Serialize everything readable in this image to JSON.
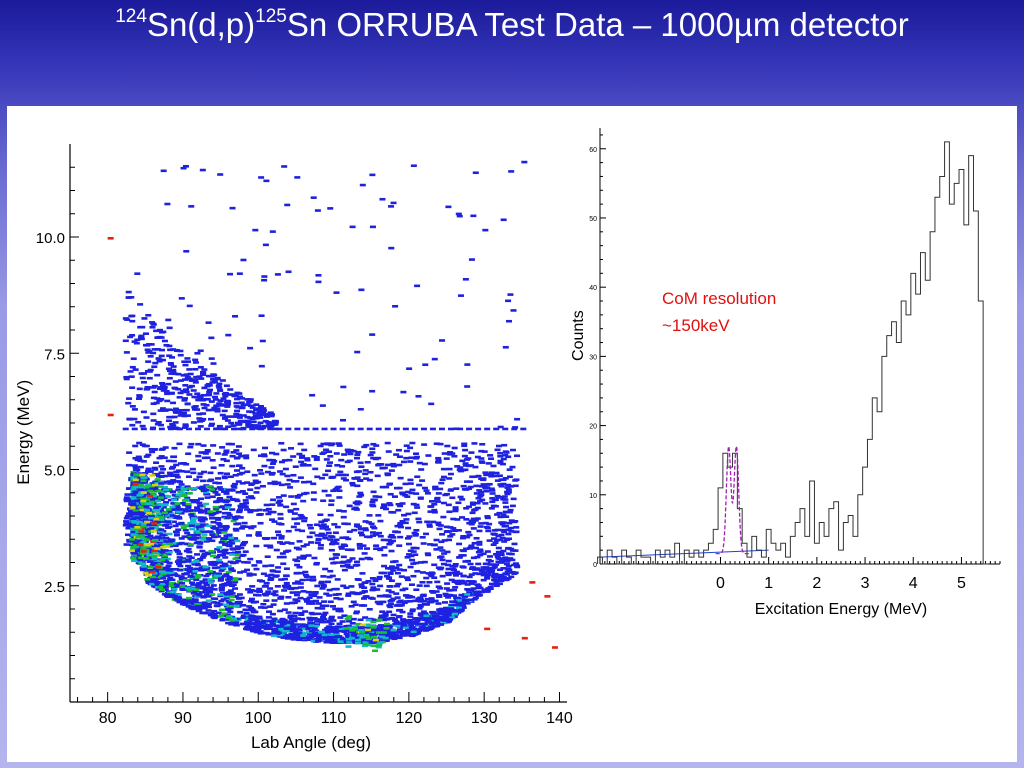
{
  "title": {
    "sup1": "124",
    "part1": "Sn(d,p)",
    "sup2": "125",
    "part2": "Sn ORRUBA Test Data – 1000",
    "mu": "µ",
    "part3": "m detector"
  },
  "colors": {
    "title_gradient": [
      "#1a1a9a",
      "#b4b4ee"
    ],
    "heatmap_scale": [
      "#1e22e0",
      "#10b8c8",
      "#18c030",
      "#d8d010",
      "#e82010"
    ],
    "spectrum_line": "#333333",
    "peak_fit": "#a020b0",
    "background_fit": "#2040d0",
    "annotation": "#e01010"
  },
  "chart_data": [
    {
      "type": "heatmap",
      "xlabel": "Lab Angle (deg)",
      "ylabel": "Energy (MeV)",
      "xlim": [
        75,
        141
      ],
      "ylim": [
        0,
        12
      ],
      "xticks": [
        "80",
        "90",
        "100",
        "110",
        "120",
        "130",
        "140"
      ],
      "yticks": [
        "2.5",
        "5.0",
        "7.5",
        "10.0"
      ],
      "ytick_values": [
        2.5,
        5.0,
        7.5,
        10.0
      ],
      "xtick_values": [
        80,
        90,
        100,
        110,
        120,
        130,
        140
      ],
      "band": {
        "description_free": true,
        "lower_edge": [
          [
            83.5,
            3.1
          ],
          [
            85,
            2.6
          ],
          [
            88,
            2.25
          ],
          [
            92,
            1.95
          ],
          [
            96,
            1.7
          ],
          [
            100,
            1.5
          ],
          [
            105,
            1.35
          ],
          [
            110,
            1.3
          ],
          [
            115,
            1.3
          ],
          [
            120,
            1.45
          ],
          [
            125,
            1.75
          ],
          [
            128,
            2.2
          ],
          [
            131,
            2.5
          ],
          [
            134,
            2.8
          ]
        ],
        "upper_edge": 5.6,
        "angle_range": [
          82,
          134
        ]
      },
      "upper_branch": {
        "points": [
          [
            82,
            8.8
          ],
          [
            85,
            8.2
          ],
          [
            88,
            7.6
          ],
          [
            92,
            7.1
          ],
          [
            96,
            6.6
          ],
          [
            100,
            6.2
          ],
          [
            102,
            6.0
          ]
        ],
        "cut_energy": 5.9
      },
      "hot_spots": [
        [
          84.5,
          3.4
        ],
        [
          84.5,
          3.9
        ],
        [
          85,
          4.6
        ],
        [
          86,
          3.1
        ],
        [
          113,
          1.5
        ],
        [
          115,
          1.45
        ]
      ]
    },
    {
      "type": "line",
      "xlabel": "Excitation Energy (MeV)",
      "ylabel": "Counts",
      "xlim": [
        -2.5,
        5.8
      ],
      "ylim": [
        0,
        63
      ],
      "xticks": [
        "0",
        "1",
        "2",
        "3",
        "4",
        "5"
      ],
      "xtick_values": [
        0,
        1,
        2,
        3,
        4,
        5
      ],
      "yticks": [
        "0",
        "10",
        "20",
        "30",
        "40",
        "50",
        "60"
      ],
      "ytick_values": [
        0,
        10,
        20,
        30,
        40,
        50,
        60
      ],
      "annotation": [
        "CoM resolution",
        "~150keV"
      ],
      "series": [
        {
          "x": [
            -2.5,
            -2.4,
            -2.3,
            -2.2,
            -2.1,
            -2.0,
            -1.9,
            -1.8,
            -1.7,
            -1.6,
            -1.5,
            -1.4,
            -1.3,
            -1.2,
            -1.1,
            -1.0,
            -0.9,
            -0.8,
            -0.7,
            -0.6,
            -0.5,
            -0.4,
            -0.3,
            -0.2,
            -0.1,
            0.0,
            0.1,
            0.2,
            0.3,
            0.4,
            0.5,
            0.6,
            0.7,
            0.8,
            0.9,
            1.0,
            1.1,
            1.2,
            1.3,
            1.4,
            1.5,
            1.6,
            1.7,
            1.8,
            1.9,
            2.0,
            2.1,
            2.2,
            2.3,
            2.4,
            2.5,
            2.6,
            2.7,
            2.8,
            2.9,
            3.0,
            3.1,
            3.2,
            3.3,
            3.4,
            3.5,
            3.6,
            3.7,
            3.8,
            3.9,
            4.0,
            4.1,
            4.2,
            4.3,
            4.4,
            4.5,
            4.6,
            4.7,
            4.8,
            4.9,
            5.0,
            5.1,
            5.2,
            5.3,
            5.4,
            5.5
          ],
          "values": [
            1,
            0,
            2,
            1,
            0,
            2,
            1,
            0,
            2,
            1,
            1,
            0,
            2,
            1,
            2,
            1,
            3,
            0,
            2,
            1,
            2,
            1,
            2,
            3,
            5,
            11,
            16,
            14,
            16,
            8,
            3,
            1,
            4,
            2,
            1,
            5,
            3,
            2,
            3,
            1,
            4,
            6,
            8,
            4,
            12,
            3,
            6,
            4,
            8,
            9,
            2,
            6,
            7,
            4,
            10,
            14,
            18,
            24,
            22,
            30,
            33,
            35,
            32,
            38,
            36,
            42,
            39,
            45,
            41,
            48,
            53,
            56,
            61,
            52,
            55,
            57,
            49,
            59,
            51,
            38,
            0
          ]
        }
      ],
      "peak_fit": {
        "center": 0.25,
        "amplitude": 15.5,
        "sigma": 0.07
      },
      "background_fit": [
        [
          -2.5,
          1.0
        ],
        [
          1.0,
          2.0
        ]
      ]
    }
  ]
}
